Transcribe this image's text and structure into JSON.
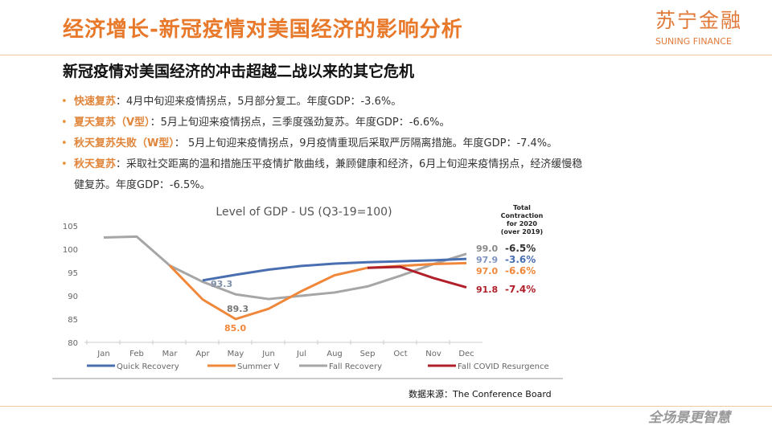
{
  "header": {
    "title": "经济增长-新冠疫情对美国经济的影响分析",
    "logo_cn": "苏宁金融",
    "logo_en": "SUNING FINANCE"
  },
  "subtitle": "新冠疫情对美国经济的冲击超越二战以来的其它危机",
  "bullets": [
    {
      "key": "快速复苏",
      "text": "：4月中旬迎来疫情拐点，5月部分复工。年度GDP：-3.6%。"
    },
    {
      "key": "夏天复苏（V型）",
      "text": "：5月上旬迎来疫情拐点，三季度强劲复苏。年度GDP：-6.6%。"
    },
    {
      "key": "秋天复苏失败（W型）",
      "text": "： 5月上旬迎来疫情拐点，9月疫情重现后采取严厉隔离措施。年度GDP：-7.4%。"
    },
    {
      "key": "秋天复苏",
      "text": "：采取社交距离的温和措施压平疫情扩散曲线，兼顾健康和经济，6月上旬迎来疫情拐点，经济缓慢稳",
      "cont": "健复苏。年度GDP：-6.5%。"
    }
  ],
  "source": "数据来源：The Conference Board",
  "footer": {
    "slogan": "全场景更智慧"
  },
  "colors": {
    "accent": "#e8782a"
  },
  "chart_data": {
    "type": "line",
    "title": "Level of GDP - US (Q3-19=100)",
    "categories": [
      "Jan",
      "Feb",
      "Mar",
      "Apr",
      "May",
      "Jun",
      "Jul",
      "Aug",
      "Sep",
      "Oct",
      "Nov",
      "Dec"
    ],
    "ylim": [
      80,
      105
    ],
    "yticks": [
      80,
      85,
      90,
      95,
      100,
      105
    ],
    "grid": false,
    "legend": "bottom",
    "series": [
      {
        "name": "Quick Recovery",
        "color": "#4a6fb0",
        "values": [
          null,
          null,
          null,
          93.3,
          94.5,
          95.6,
          96.4,
          96.9,
          97.2,
          97.4,
          97.6,
          97.9
        ]
      },
      {
        "name": "Summer V",
        "color": "#f0883c",
        "values": [
          null,
          null,
          96.5,
          89.2,
          85.0,
          87.2,
          91.0,
          94.4,
          96.0,
          96.4,
          96.8,
          97.0
        ]
      },
      {
        "name": "Fall Recovery",
        "color": "#a6a6a6",
        "values": [
          102.5,
          102.7,
          96.5,
          93.0,
          90.3,
          89.3,
          90.0,
          90.7,
          92.0,
          94.3,
          96.8,
          99.0
        ]
      },
      {
        "name": "Fall COVID Resurgence",
        "color": "#b0202a",
        "values": [
          null,
          null,
          null,
          null,
          null,
          null,
          null,
          null,
          96.0,
          96.2,
          93.8,
          91.8
        ]
      }
    ],
    "annotations": [
      {
        "text": "93.3",
        "color": "#7f8fa8",
        "month": "Apr",
        "value": 93.3
      },
      {
        "text": "89.3",
        "color": "#777777",
        "month": "Jun",
        "value": 89.3
      },
      {
        "text": "85.0",
        "color": "#f0883c",
        "month": "May",
        "value": 85.0
      },
      {
        "text": "99.0",
        "color": "#888888",
        "value": 99.0
      },
      {
        "text": "97.9",
        "color": "#7f94c0",
        "value": 97.9
      },
      {
        "text": "97.0",
        "color": "#f0883c",
        "value": 97.0
      },
      {
        "text": "91.8",
        "color": "#b0202a",
        "value": 91.8
      }
    ],
    "side_header": "Total Contraction for 2020 (over 2019)",
    "side_values": [
      {
        "text": "-6.5%",
        "color": "#333333"
      },
      {
        "text": "-3.6%",
        "color": "#4a6fb0"
      },
      {
        "text": "-6.6%",
        "color": "#f0883c"
      },
      {
        "text": "-7.4%",
        "color": "#b0202a"
      }
    ]
  }
}
